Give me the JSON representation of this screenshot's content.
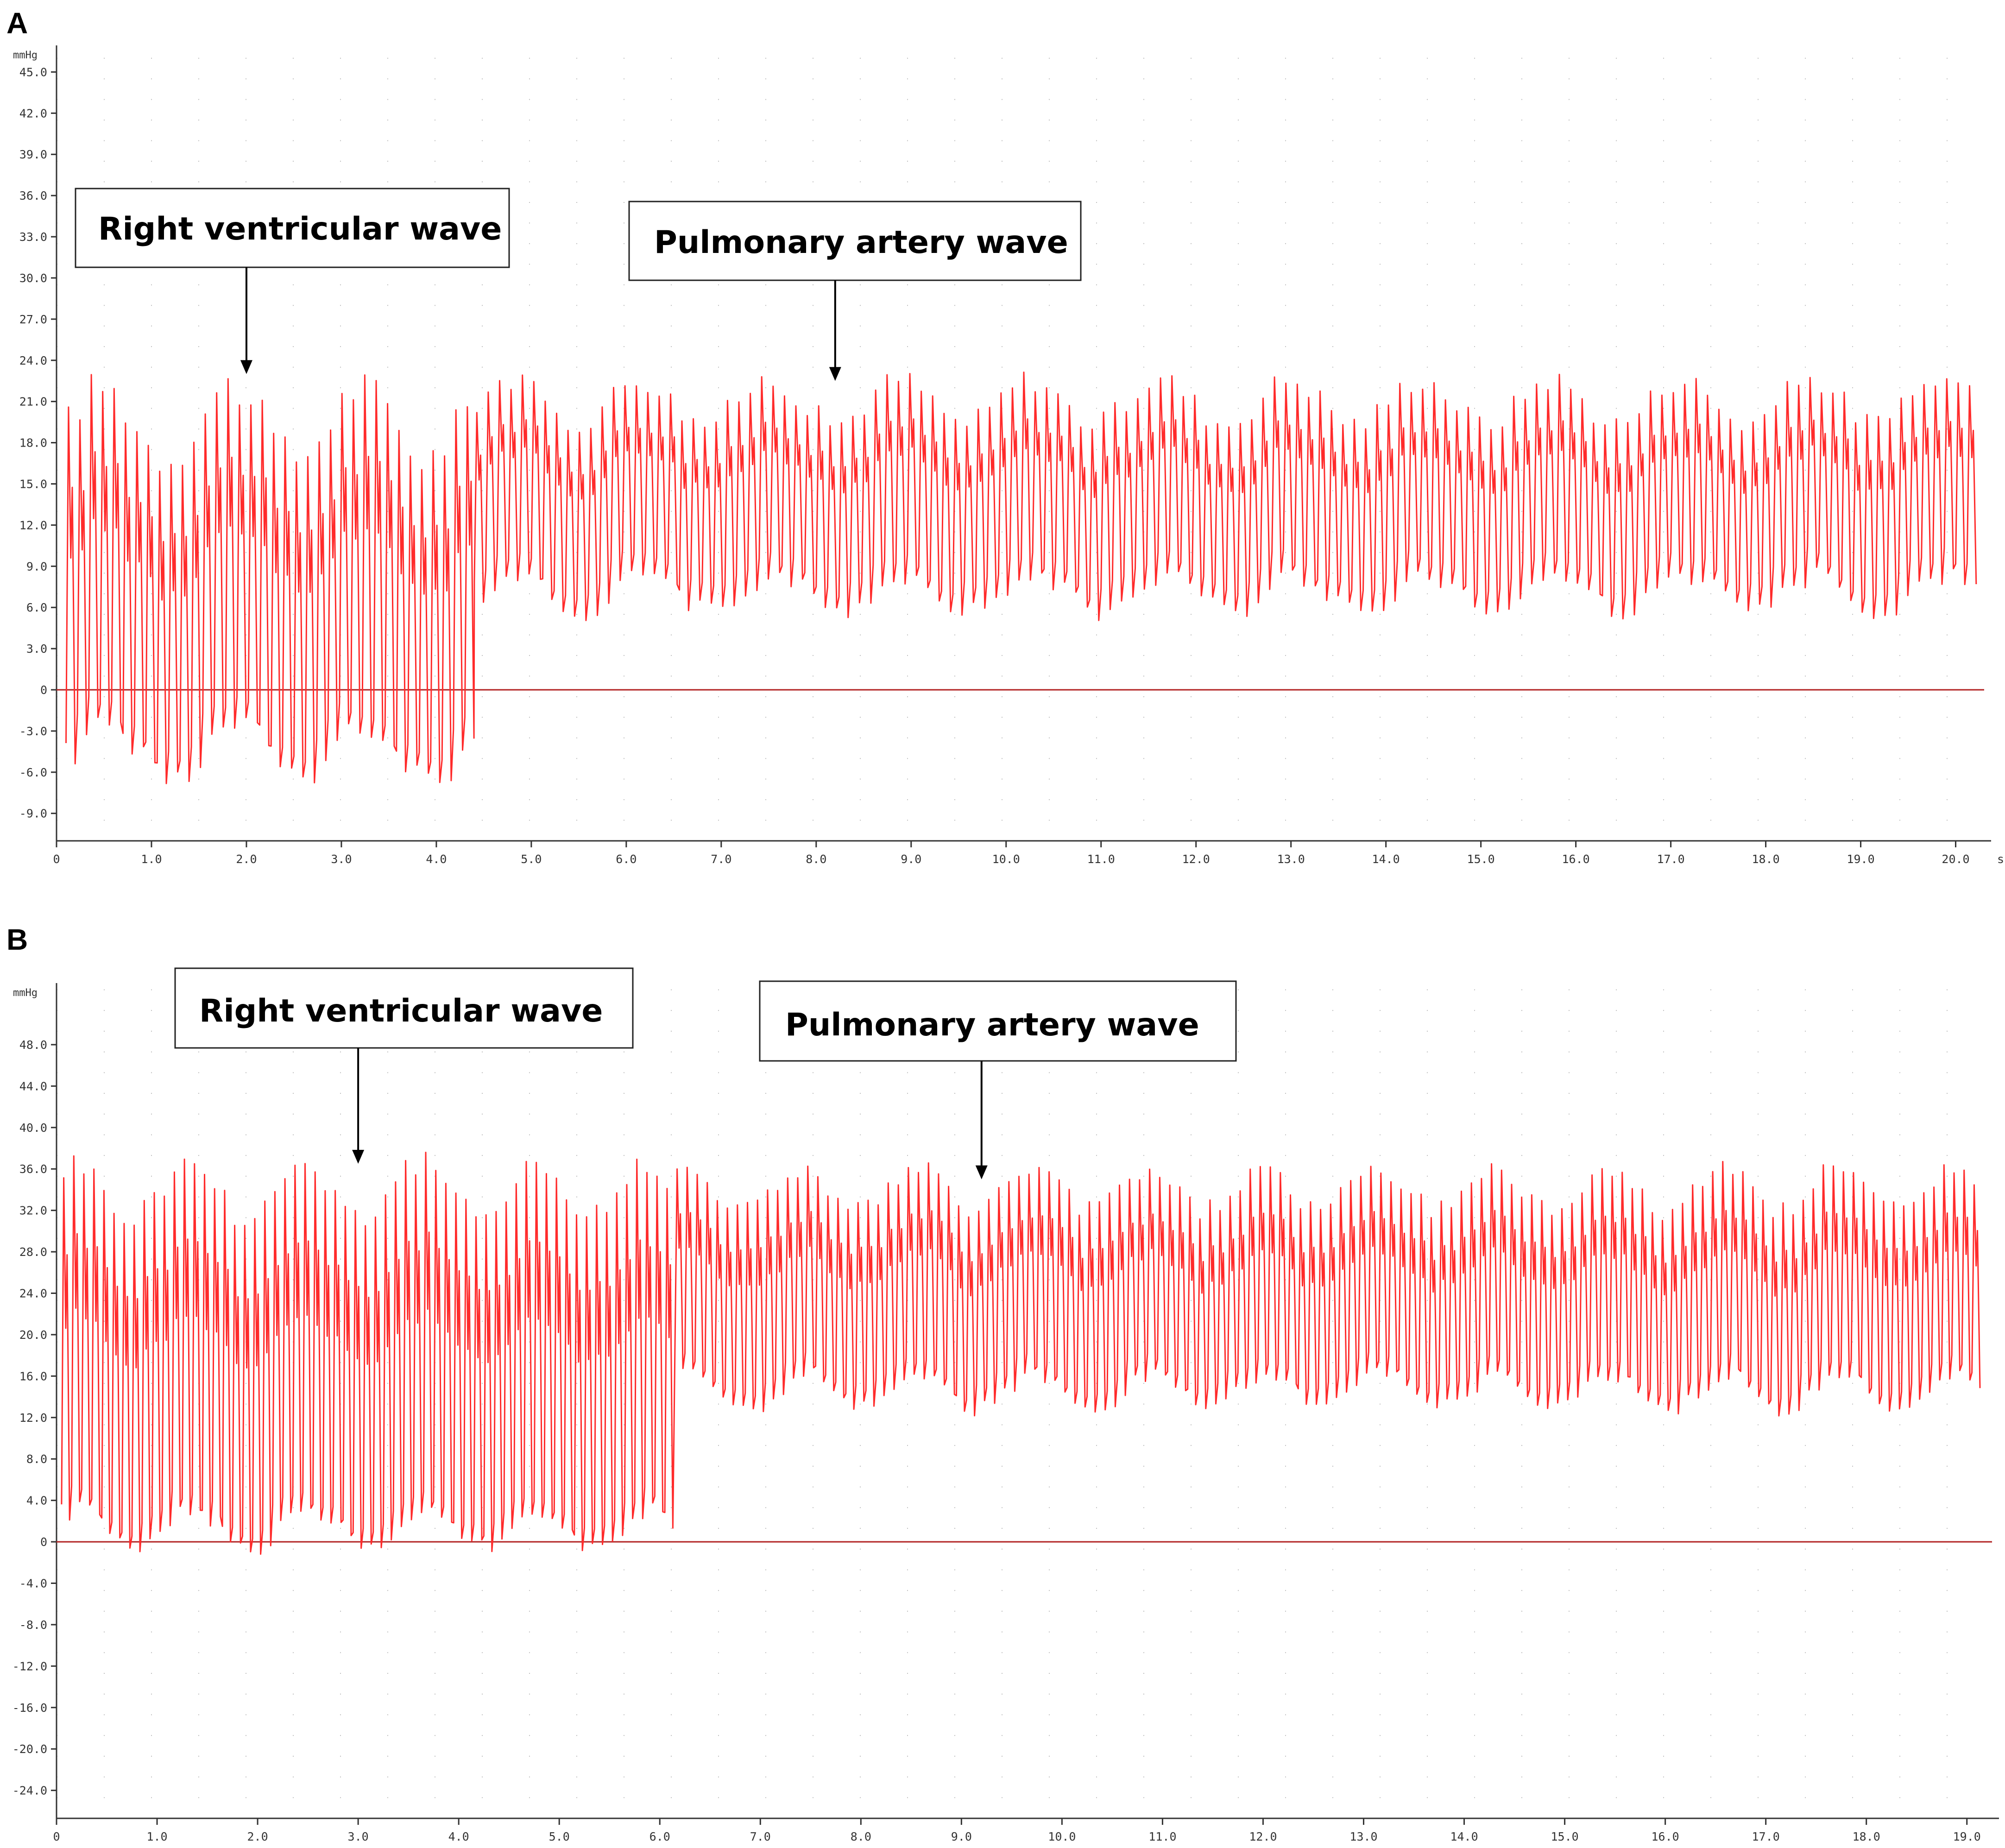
{
  "chart_data": [
    {
      "panel": "A",
      "type": "line",
      "ylabel": "mmHg",
      "x_unit": "s",
      "ylim": [
        -11,
        46.6
      ],
      "xlim": [
        0,
        20.3
      ],
      "y_ticks": [
        "45.0",
        "42.0",
        "39.0",
        "36.0",
        "33.0",
        "30.0",
        "27.0",
        "24.0",
        "21.0",
        "18.0",
        "15.0",
        "12.0",
        "9.0",
        "6.0",
        "3.0",
        "0",
        "-3.0",
        "-6.0",
        "-9.0"
      ],
      "x_ticks": [
        "0",
        "1.0",
        "2.0",
        "3.0",
        "4.0",
        "5.0",
        "6.0",
        "7.0",
        "8.0",
        "9.0",
        "10.0",
        "11.0",
        "12.0",
        "13.0",
        "14.0",
        "15.0",
        "16.0",
        "17.0",
        "18.0",
        "19.0",
        "20.0"
      ],
      "grid": true,
      "series": [
        {
          "color": "#ff2b2b",
          "segments": [
            {
              "x_start": 0.1,
              "x_end": 4.4,
              "peak_max": 23.5,
              "peak_min": 15.5,
              "trough_max": -1.5,
              "trough_min": -7.5,
              "beat_period": 0.12
            },
            {
              "x_start": 4.4,
              "x_end": 20.2,
              "peak_max": 23.5,
              "peak_min": 18.5,
              "trough_max": 9.0,
              "trough_min": 5.0,
              "beat_period": 0.12
            }
          ]
        }
      ],
      "baseline": 0,
      "annotations": [
        {
          "text": "Right ventricular wave",
          "arrow_x": 2.0,
          "arrow_y": 23.0
        },
        {
          "text": "Pulmonary artery wave",
          "arrow_x": 8.2,
          "arrow_y": 22.5
        }
      ]
    },
    {
      "panel": "B",
      "type": "line",
      "ylabel": "mmHg",
      "x_unit": "",
      "ylim": [
        -26.7,
        53.5
      ],
      "xlim": [
        0,
        19.25
      ],
      "y_ticks": [
        "48.0",
        "44.0",
        "40.0",
        "36.0",
        "32.0",
        "28.0",
        "24.0",
        "20.0",
        "16.0",
        "12.0",
        "8.0",
        "4.0",
        "0",
        "-4.0",
        "-8.0",
        "-12.0",
        "-16.0",
        "-20.0",
        "-24.0"
      ],
      "x_ticks": [
        "0",
        "1.0",
        "2.0",
        "3.0",
        "4.0",
        "5.0",
        "6.0",
        "7.0",
        "8.0",
        "9.0",
        "10.0",
        "11.0",
        "12.0",
        "13.0",
        "14.0",
        "15.0",
        "16.0",
        "17.0",
        "18.0",
        "19.0"
      ],
      "grid": true,
      "series": [
        {
          "color": "#ff2b2b",
          "segments": [
            {
              "x_start": 0.05,
              "x_end": 6.15,
              "peak_max": 38.0,
              "peak_min": 30.0,
              "trough_max": 4.0,
              "trough_min": -1.5,
              "beat_period": 0.1
            },
            {
              "x_start": 6.15,
              "x_end": 19.1,
              "peak_max": 37.0,
              "peak_min": 31.0,
              "trough_max": 17.0,
              "trough_min": 12.0,
              "beat_period": 0.1
            }
          ]
        }
      ],
      "baseline": 0,
      "annotations": [
        {
          "text": "Right ventricular wave",
          "arrow_x": 3.0,
          "arrow_y": 36.5
        },
        {
          "text": "Pulmonary artery wave",
          "arrow_x": 9.2,
          "arrow_y": 35.0
        }
      ]
    }
  ]
}
